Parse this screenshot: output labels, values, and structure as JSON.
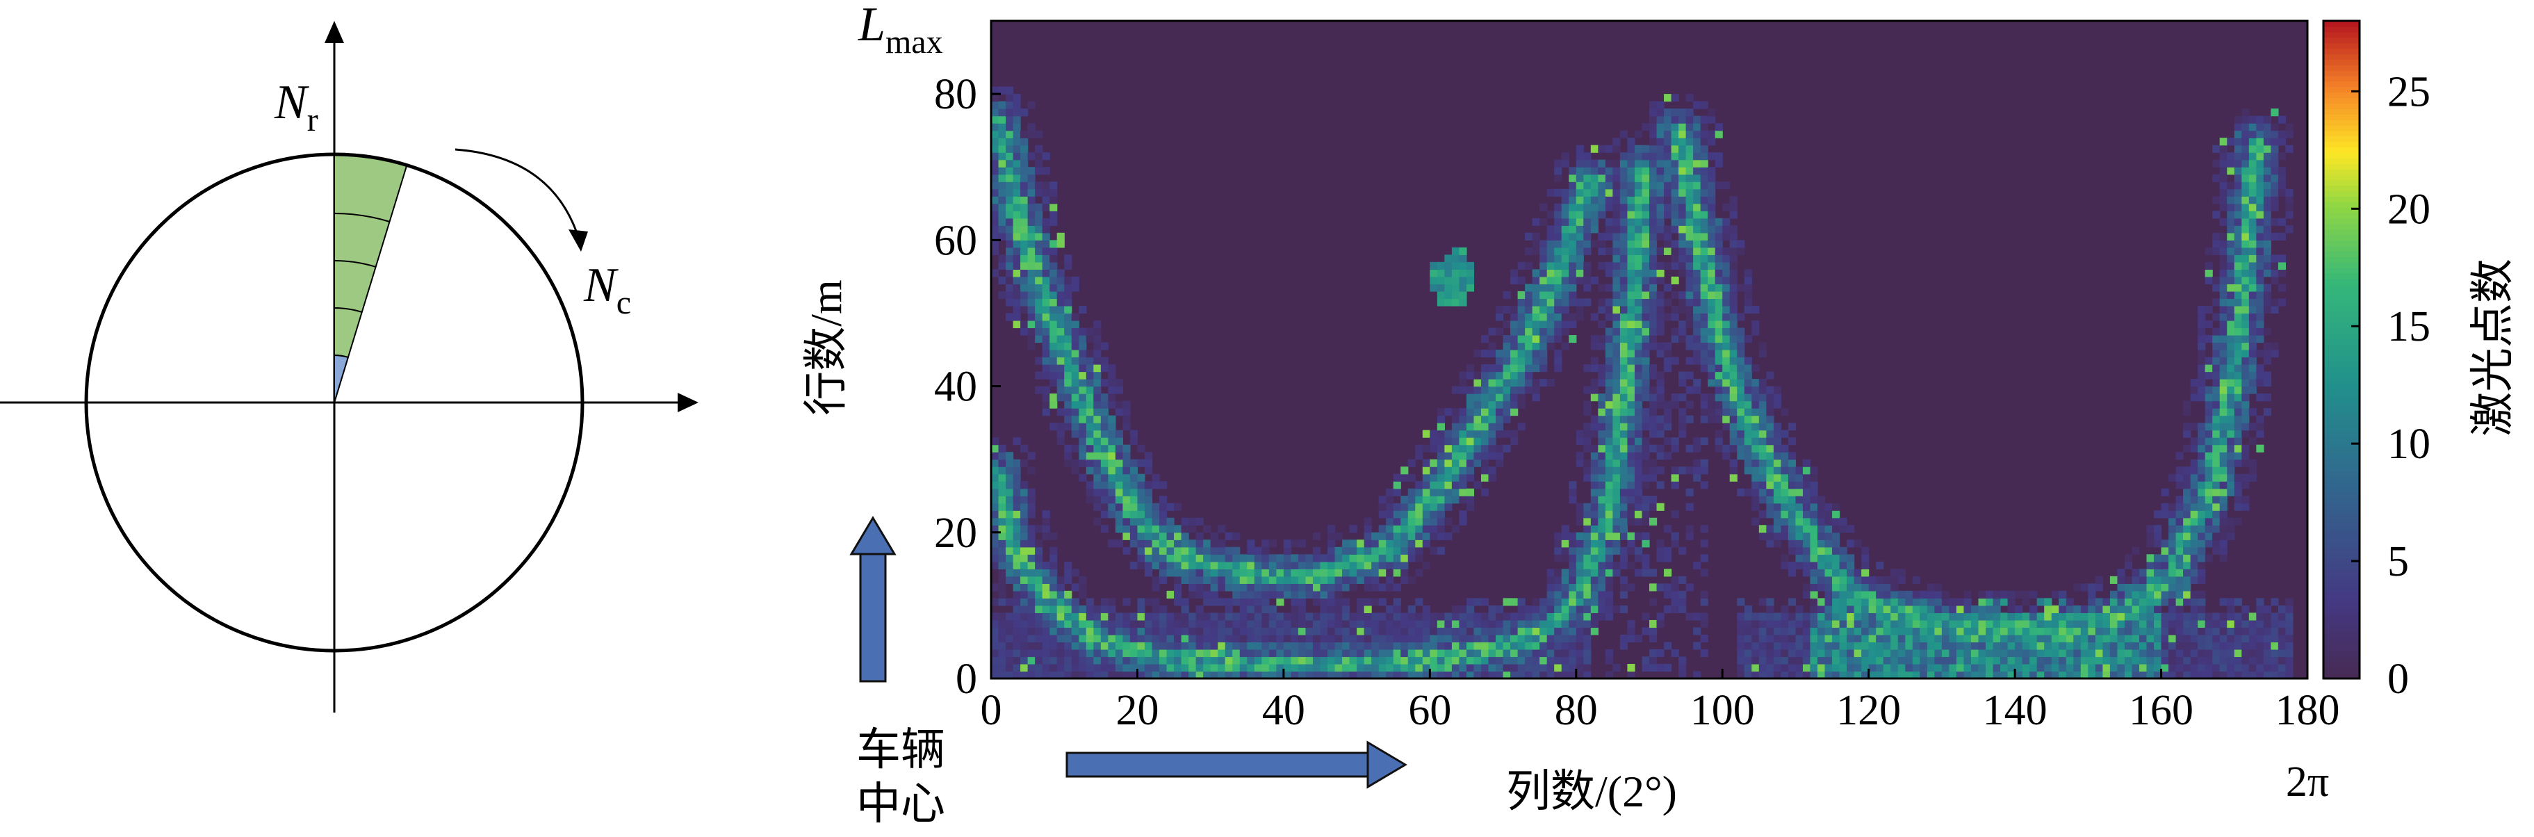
{
  "diagram": {
    "row_symbol": "N",
    "row_subscript": "r",
    "col_symbol": "N",
    "col_subscript": "c",
    "colors": {
      "sector_fill": "#9dc983",
      "cell_fill": "#8aa9d8",
      "line": "#000000"
    }
  },
  "chart_data": {
    "type": "heatmap",
    "title": "",
    "xlabel": "列数/(2°)",
    "ylabel": "行数/m",
    "colorbar_label": "激光点数",
    "xlim": [
      0,
      180
    ],
    "ylim": [
      0,
      90
    ],
    "clim": [
      0,
      28
    ],
    "x_ticks": [
      "0",
      "20",
      "40",
      "60",
      "80",
      "100",
      "120",
      "140",
      "160",
      "180"
    ],
    "y_ticks": [
      "0",
      "20",
      "40",
      "60",
      "80"
    ],
    "colorbar_ticks": [
      "0",
      "5",
      "10",
      "15",
      "20",
      "25"
    ],
    "x_end_label": "2π",
    "y_top_symbol": "L",
    "y_top_subscript": "max",
    "origin_label_line1": "车辆",
    "origin_label_line2": "中心",
    "colormap": "viridis-like (dark navy → teal → green → yellow → red)",
    "background_color": "#472a54",
    "arc_features": [
      {
        "name": "outer-left arc",
        "points": [
          [
            1,
            76
          ],
          [
            5,
            58
          ],
          [
            10,
            45
          ],
          [
            15,
            32
          ],
          [
            20,
            22
          ],
          [
            25,
            17
          ],
          [
            35,
            14
          ],
          [
            45,
            14
          ],
          [
            55,
            18
          ],
          [
            62,
            27
          ],
          [
            68,
            37
          ],
          [
            73,
            45
          ],
          [
            78,
            57
          ],
          [
            82,
            68
          ]
        ]
      },
      {
        "name": "inner-left arc",
        "points": [
          [
            1,
            28
          ],
          [
            3,
            18
          ],
          [
            8,
            10
          ],
          [
            15,
            5
          ],
          [
            25,
            2.5
          ],
          [
            40,
            2
          ],
          [
            55,
            2
          ],
          [
            65,
            3
          ],
          [
            75,
            6
          ],
          [
            80,
            11
          ],
          [
            84,
            21
          ],
          [
            86,
            34
          ],
          [
            88,
            52
          ],
          [
            89,
            70
          ]
        ]
      },
      {
        "name": "right arc",
        "points": [
          [
            94,
            75
          ],
          [
            97,
            60
          ],
          [
            100,
            45
          ],
          [
            104,
            34
          ],
          [
            110,
            22
          ],
          [
            118,
            11
          ],
          [
            130,
            7
          ],
          [
            145,
            6
          ],
          [
            155,
            9
          ],
          [
            162,
            15
          ],
          [
            167,
            27
          ],
          [
            170,
            42
          ],
          [
            172,
            60
          ],
          [
            173,
            73
          ]
        ]
      }
    ]
  }
}
